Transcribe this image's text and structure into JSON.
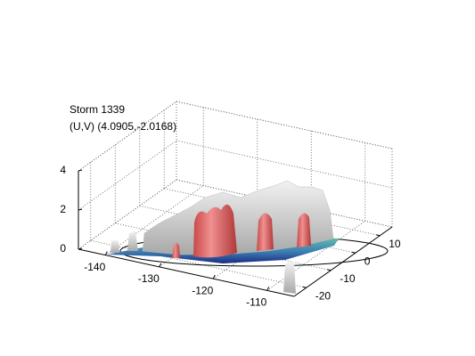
{
  "chart_data": {
    "type": "surface3d",
    "title": "Storm 1339",
    "subtitle": "(U,V) (4.0905,-2.0168)",
    "xlim": [
      -145,
      -105
    ],
    "ylim": [
      -25,
      15
    ],
    "zlim": [
      0,
      4
    ],
    "xticks": [
      -140,
      -130,
      -120,
      -110
    ],
    "yticks": [
      -20,
      -10,
      0,
      10
    ],
    "zticks": [
      0,
      2,
      4
    ],
    "grid": true
  }
}
